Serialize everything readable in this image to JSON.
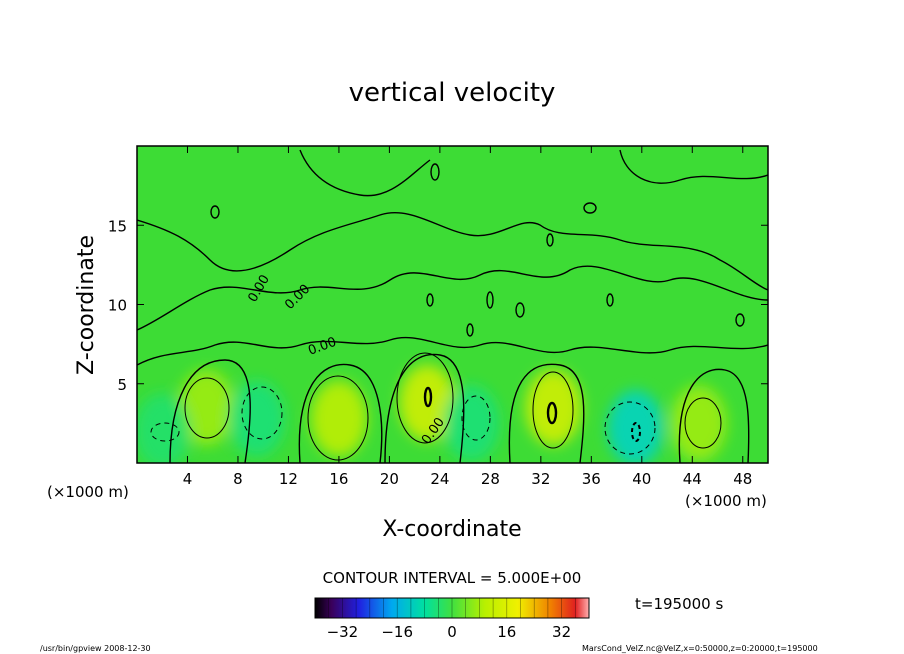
{
  "chart_data": {
    "type": "heatmap",
    "title": "vertical velocity",
    "xlabel": "X-coordinate",
    "ylabel": "Z-coordinate",
    "x_unit_left": "(×1000 m)",
    "x_unit_right": "(×1000 m)",
    "xlim": [
      0,
      50
    ],
    "ylim": [
      0,
      20
    ],
    "x_ticks": [
      4,
      8,
      12,
      16,
      20,
      24,
      28,
      32,
      36,
      40,
      44,
      48
    ],
    "y_ticks": [
      5,
      10,
      15
    ],
    "contour_label": "0.00",
    "contour_interval_text": "CONTOUR INTERVAL = 5.000E+00",
    "time_text": "t=195000 s",
    "colorbar_ticks": [
      -32,
      -16,
      0,
      16,
      32
    ],
    "colorbar_range": [
      -40,
      40
    ],
    "features": [
      {
        "x": 5.5,
        "z": 3.5,
        "value": 8
      },
      {
        "x": 9.5,
        "z": 2.8,
        "value": -5
      },
      {
        "x": 16,
        "z": 2.8,
        "value": 12
      },
      {
        "x": 23,
        "z": 3.8,
        "value": 15
      },
      {
        "x": 26.5,
        "z": 2.5,
        "value": -5
      },
      {
        "x": 33,
        "z": 3.5,
        "value": 15
      },
      {
        "x": 39.5,
        "z": 2.2,
        "value": -10
      },
      {
        "x": 44.5,
        "z": 2.5,
        "value": 8
      },
      {
        "x": 2,
        "z": 2,
        "value": -4
      }
    ],
    "grid": false
  },
  "footer": {
    "left": "/usr/bin/gpview   2008-12-30",
    "right": "MarsCond_VelZ.nc@VelZ,x=0:50000,z=0:20000,t=195000"
  }
}
